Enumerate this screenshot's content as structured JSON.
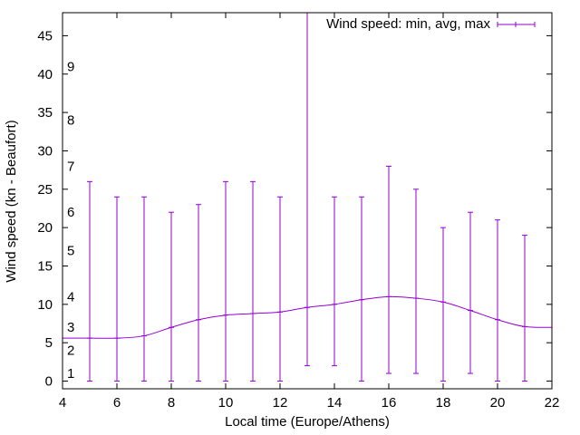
{
  "chart_data": {
    "type": "line",
    "title": "",
    "xlabel": "Local time (Europe/Athens)",
    "ylabel": "Wind speed (kn - Beaufort)",
    "xlim": [
      4,
      22
    ],
    "ylim": [
      -1,
      48
    ],
    "xticks": [
      4,
      6,
      8,
      10,
      12,
      14,
      16,
      18,
      20,
      22
    ],
    "yticks": [
      0,
      5,
      10,
      15,
      20,
      25,
      30,
      35,
      40,
      45
    ],
    "beaufort_labels": [
      {
        "label": "1",
        "value": 1
      },
      {
        "label": "2",
        "value": 4
      },
      {
        "label": "3",
        "value": 7
      },
      {
        "label": "4",
        "value": 11
      },
      {
        "label": "5",
        "value": 17
      },
      {
        "label": "6",
        "value": 22
      },
      {
        "label": "7",
        "value": 28
      },
      {
        "label": "8",
        "value": 34
      },
      {
        "label": "9",
        "value": 41
      }
    ],
    "series": [
      {
        "name": "Wind speed: min, avg, max",
        "color": "#9400d3",
        "x": [
          4,
          5,
          6,
          7,
          8,
          9,
          10,
          11,
          12,
          13,
          14,
          15,
          16,
          17,
          18,
          19,
          20,
          21,
          22
        ],
        "avg": [
          5.6,
          5.6,
          5.6,
          5.9,
          7.0,
          8.0,
          8.6,
          8.8,
          9.0,
          9.6,
          10.0,
          10.6,
          11.0,
          10.8,
          10.3,
          9.2,
          8.0,
          7.1,
          7.0
        ],
        "min": [
          null,
          0,
          0,
          0,
          0,
          0,
          0,
          0,
          0,
          2,
          2,
          0,
          1,
          1,
          0,
          1,
          0,
          0,
          null
        ],
        "max": [
          null,
          26,
          24,
          24,
          22,
          23,
          26,
          26,
          24,
          48,
          24,
          24,
          28,
          25,
          20,
          22,
          21,
          19,
          null
        ]
      }
    ],
    "legend": "top-right"
  }
}
